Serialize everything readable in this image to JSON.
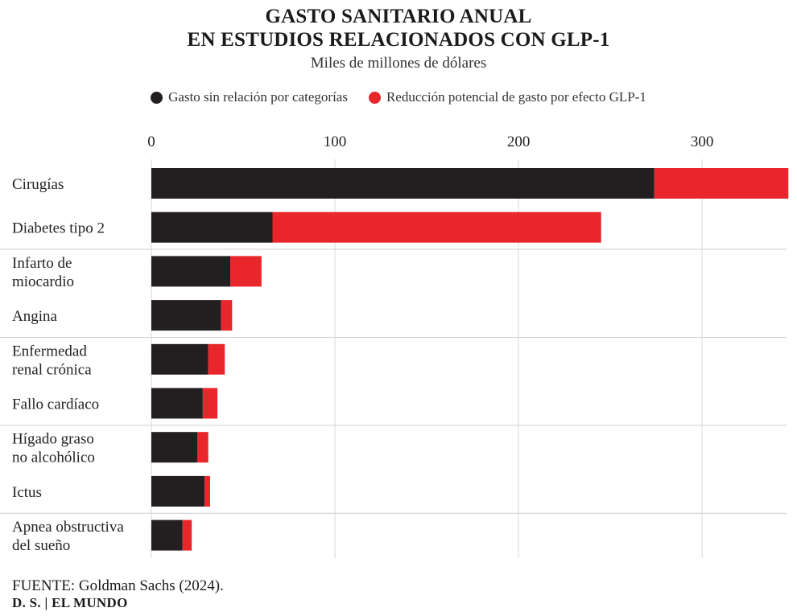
{
  "header": {
    "title_line1": "GASTO SANITARIO ANUAL",
    "title_line2": "EN ESTUDIOS RELACIONADOS CON GLP-1",
    "subtitle": "Miles de millones de dólares"
  },
  "legend": [
    {
      "label": "Gasto sin relación por categorías",
      "color": "#231f20"
    },
    {
      "label": "Reducción potencial de gasto por efecto GLP-1",
      "color": "#e8262b"
    }
  ],
  "chart_data": {
    "type": "bar",
    "orientation": "horizontal",
    "stacked": true,
    "title": "GASTO SANITARIO ANUAL EN ESTUDIOS RELACIONADOS CON GLP-1",
    "subtitle": "Miles de millones de dólares",
    "xlim": [
      0,
      346
    ],
    "xticks": [
      0,
      100,
      200,
      300
    ],
    "categories": [
      [
        "Cirugías"
      ],
      [
        "Diabetes tipo 2"
      ],
      [
        "Infarto de",
        "miocardio"
      ],
      [
        "Angina"
      ],
      [
        "Enfermedad",
        "renal crónica"
      ],
      [
        "Fallo cardíaco"
      ],
      [
        "Hígado graso",
        "no alcohólico"
      ],
      [
        "Ictus"
      ],
      [
        "Apnea obstructiva",
        "del sueño"
      ]
    ],
    "series": [
      {
        "name": "Gasto sin relación por categorías",
        "color": "#231f20",
        "values": [
          274,
          66,
          43,
          38,
          31,
          28,
          25,
          29,
          17
        ]
      },
      {
        "name": "Reducción potencial de gasto por efecto GLP-1",
        "color": "#e8262b",
        "values": [
          73,
          179,
          17,
          6,
          9,
          8,
          6,
          3,
          5
        ]
      }
    ]
  },
  "footer": {
    "source_label": "FUENTE:",
    "source_text": " Goldman Sachs (2024).",
    "credit": "D. S. | EL MUNDO"
  }
}
